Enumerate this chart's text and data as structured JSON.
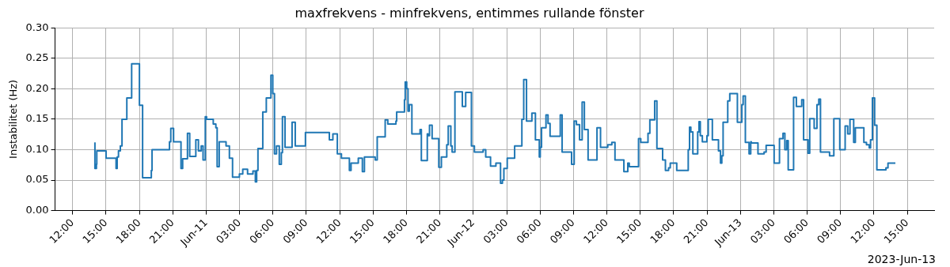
{
  "chart_data": {
    "type": "step",
    "title": "maxfrekvens - minfrekvens, entimmes rullande fönster",
    "ylabel": "Instabilitet (Hz)",
    "annotations": [
      "2023-Jun-13"
    ],
    "xlim": [
      "2023-06-10T10:25",
      "2023-06-13T17:25"
    ],
    "xticks": [
      {
        "value": "2023-06-10T12:00",
        "label": "12:00"
      },
      {
        "value": "2023-06-10T15:00",
        "label": "15:00"
      },
      {
        "value": "2023-06-10T18:00",
        "label": "18:00"
      },
      {
        "value": "2023-06-10T21:00",
        "label": "21:00"
      },
      {
        "value": "2023-06-11T00:00",
        "label": "Jun-11"
      },
      {
        "value": "2023-06-11T03:00",
        "label": "03:00"
      },
      {
        "value": "2023-06-11T06:00",
        "label": "06:00"
      },
      {
        "value": "2023-06-11T09:00",
        "label": "09:00"
      },
      {
        "value": "2023-06-11T12:00",
        "label": "12:00"
      },
      {
        "value": "2023-06-11T15:00",
        "label": "15:00"
      },
      {
        "value": "2023-06-11T18:00",
        "label": "18:00"
      },
      {
        "value": "2023-06-11T21:00",
        "label": "21:00"
      },
      {
        "value": "2023-06-12T00:00",
        "label": "Jun-12"
      },
      {
        "value": "2023-06-12T03:00",
        "label": "03:00"
      },
      {
        "value": "2023-06-12T06:00",
        "label": "06:00"
      },
      {
        "value": "2023-06-12T09:00",
        "label": "09:00"
      },
      {
        "value": "2023-06-12T12:00",
        "label": "12:00"
      },
      {
        "value": "2023-06-12T15:00",
        "label": "15:00"
      },
      {
        "value": "2023-06-12T18:00",
        "label": "18:00"
      },
      {
        "value": "2023-06-12T21:00",
        "label": "21:00"
      },
      {
        "value": "2023-06-13T00:00",
        "label": "Jun-13"
      },
      {
        "value": "2023-06-13T03:00",
        "label": "03:00"
      },
      {
        "value": "2023-06-13T06:00",
        "label": "06:00"
      },
      {
        "value": "2023-06-13T09:00",
        "label": "09:00"
      },
      {
        "value": "2023-06-13T12:00",
        "label": "12:00"
      },
      {
        "value": "2023-06-13T15:00",
        "label": "15:00"
      }
    ],
    "ylim": [
      0,
      0.3
    ],
    "yticks": [
      {
        "value": 0,
        "label": "0.00"
      },
      {
        "value": 0.05,
        "label": "0.05"
      },
      {
        "value": 0.1,
        "label": "0.10"
      },
      {
        "value": 0.15,
        "label": "0.15"
      },
      {
        "value": 0.2,
        "label": "0.20"
      },
      {
        "value": 0.25,
        "label": "0.25"
      },
      {
        "value": 0.3,
        "label": "0.30"
      }
    ],
    "grid": true,
    "x": [
      "2023-06-10T14:00",
      "2023-06-10T14:08",
      "2023-06-10T14:10",
      "2023-06-10T15:00",
      "2023-06-10T15:54",
      "2023-06-10T16:00",
      "2023-06-10T16:07",
      "2023-06-10T16:17",
      "2023-06-10T16:26",
      "2023-06-10T16:52",
      "2023-06-10T17:18",
      "2023-06-10T18:00",
      "2023-06-10T18:17",
      "2023-06-10T19:04",
      "2023-06-10T19:08",
      "2023-06-10T20:42",
      "2023-06-10T20:49",
      "2023-06-10T21:04",
      "2023-06-10T21:44",
      "2023-06-10T21:53",
      "2023-06-10T22:19",
      "2023-06-10T22:31",
      "2023-06-10T23:04",
      "2023-06-10T23:18",
      "2023-06-10T23:33",
      "2023-06-10T23:43",
      "2023-06-10T23:55",
      "2023-06-11T00:02",
      "2023-06-11T00:38",
      "2023-06-11T00:52",
      "2023-06-11T00:59",
      "2023-06-11T01:10",
      "2023-06-11T01:47",
      "2023-06-11T02:05",
      "2023-06-11T02:22",
      "2023-06-11T02:59",
      "2023-06-11T03:17",
      "2023-06-11T03:43",
      "2023-06-11T04:12",
      "2023-06-11T04:25",
      "2023-06-11T04:32",
      "2023-06-11T04:39",
      "2023-06-11T05:05",
      "2023-06-11T05:24",
      "2023-06-11T05:49",
      "2023-06-11T05:59",
      "2023-06-11T06:08",
      "2023-06-11T06:19",
      "2023-06-11T06:34",
      "2023-06-11T06:45",
      "2023-06-11T06:51",
      "2023-06-11T07:05",
      "2023-06-11T07:43",
      "2023-06-11T08:00",
      "2023-06-11T08:55",
      "2023-06-11T11:04",
      "2023-06-11T11:23",
      "2023-06-11T11:47",
      "2023-06-11T12:09",
      "2023-06-11T12:52",
      "2023-06-11T13:01",
      "2023-06-11T13:40",
      "2023-06-11T14:02",
      "2023-06-11T14:13",
      "2023-06-11T15:11",
      "2023-06-11T15:22",
      "2023-06-11T16:05",
      "2023-06-11T16:19",
      "2023-06-11T17:03",
      "2023-06-11T17:07",
      "2023-06-11T17:49",
      "2023-06-11T17:53",
      "2023-06-11T18:01",
      "2023-06-11T18:08",
      "2023-06-11T18:15",
      "2023-06-11T18:29",
      "2023-06-11T19:13",
      "2023-06-11T19:20",
      "2023-06-11T19:52",
      "2023-06-11T19:56",
      "2023-06-11T20:04",
      "2023-06-11T20:18",
      "2023-06-11T20:54",
      "2023-06-11T21:08",
      "2023-06-11T21:37",
      "2023-06-11T21:45",
      "2023-06-11T21:59",
      "2023-06-11T22:06",
      "2023-06-11T22:21",
      "2023-06-11T23:01",
      "2023-06-11T23:19",
      "2023-06-11T23:50",
      "2023-06-12T00:06",
      "2023-06-12T00:53",
      "2023-06-12T01:07",
      "2023-06-12T01:33",
      "2023-06-12T02:02",
      "2023-06-12T02:27",
      "2023-06-12T02:37",
      "2023-06-12T02:45",
      "2023-06-12T03:03",
      "2023-06-12T03:43",
      "2023-06-12T04:22",
      "2023-06-12T04:32",
      "2023-06-12T04:47",
      "2023-06-12T05:16",
      "2023-06-12T05:35",
      "2023-06-12T05:56",
      "2023-06-12T06:01",
      "2023-06-12T06:08",
      "2023-06-12T06:32",
      "2023-06-12T06:43",
      "2023-06-12T06:54",
      "2023-06-12T07:49",
      "2023-06-12T07:59",
      "2023-06-12T08:50",
      "2023-06-12T09:04",
      "2023-06-12T09:16",
      "2023-06-12T09:33",
      "2023-06-12T09:47",
      "2023-06-12T09:59",
      "2023-06-12T10:19",
      "2023-06-12T11:07",
      "2023-06-12T11:26",
      "2023-06-12T12:05",
      "2023-06-12T12:27",
      "2023-06-12T12:44",
      "2023-06-12T13:32",
      "2023-06-12T13:53",
      "2023-06-12T14:01",
      "2023-06-12T14:51",
      "2023-06-12T15:03",
      "2023-06-12T15:42",
      "2023-06-12T15:52",
      "2023-06-12T16:18",
      "2023-06-12T16:30",
      "2023-06-12T17:01",
      "2023-06-12T17:16",
      "2023-06-12T17:33",
      "2023-06-12T17:42",
      "2023-06-12T18:17",
      "2023-06-12T19:19",
      "2023-06-12T19:26",
      "2023-06-12T19:33",
      "2023-06-12T19:44",
      "2023-06-12T20:10",
      "2023-06-12T20:17",
      "2023-06-12T20:24",
      "2023-06-12T20:35",
      "2023-06-12T21:00",
      "2023-06-12T21:07",
      "2023-06-12T21:29",
      "2023-06-12T22:02",
      "2023-06-12T22:13",
      "2023-06-12T22:20",
      "2023-06-12T22:27",
      "2023-06-12T22:52",
      "2023-06-12T23:03",
      "2023-06-12T23:44",
      "2023-06-13T00:08",
      "2023-06-13T00:15",
      "2023-06-13T00:27",
      "2023-06-13T00:47",
      "2023-06-13T00:56",
      "2023-06-13T00:59",
      "2023-06-13T01:35",
      "2023-06-13T02:08",
      "2023-06-13T02:19",
      "2023-06-13T03:02",
      "2023-06-13T03:31",
      "2023-06-13T03:50",
      "2023-06-13T04:00",
      "2023-06-13T04:10",
      "2023-06-13T04:18",
      "2023-06-13T04:47",
      "2023-06-13T05:02",
      "2023-06-13T05:31",
      "2023-06-13T05:41",
      "2023-06-13T06:05",
      "2023-06-13T06:14",
      "2023-06-13T06:38",
      "2023-06-13T06:53",
      "2023-06-13T07:03",
      "2023-06-13T07:12",
      "2023-06-13T08:01",
      "2023-06-13T08:24",
      "2023-06-13T08:56",
      "2023-06-13T09:25",
      "2023-06-13T09:39",
      "2023-06-13T09:51",
      "2023-06-13T10:11",
      "2023-06-13T10:20",
      "2023-06-13T11:06",
      "2023-06-13T11:20",
      "2023-06-13T11:35",
      "2023-06-13T11:42",
      "2023-06-13T11:52",
      "2023-06-13T12:04",
      "2023-06-13T12:16",
      "2023-06-13T13:05",
      "2023-06-13T13:16",
      "2023-06-13T13:56"
    ],
    "series": [
      {
        "color": "#1f77b4",
        "values": [
          0.112,
          0.069,
          0.076,
          0.098,
          0.086,
          0.069,
          0.088,
          0.098,
          0.106,
          0.15,
          0.185,
          0.241,
          0.173,
          0.054,
          0.066,
          0.1,
          0.113,
          0.135,
          0.113,
          0.069,
          0.085,
          0.127,
          0.089,
          0.116,
          0.098,
          0.106,
          0.083,
          0.154,
          0.15,
          0.142,
          0.136,
          0.072,
          0.113,
          0.106,
          0.086,
          0.055,
          0.06,
          0.068,
          0.06,
          0.065,
          0.047,
          0.066,
          0.102,
          0.162,
          0.185,
          0.222,
          0.192,
          0.093,
          0.106,
          0.076,
          0.095,
          0.154,
          0.104,
          0.145,
          0.106,
          0.128,
          0.116,
          0.126,
          0.093,
          0.086,
          0.066,
          0.078,
          0.086,
          0.064,
          0.088,
          0.083,
          0.121,
          0.149,
          0.142,
          0.147,
          0.162,
          0.182,
          0.211,
          0.2,
          0.163,
          0.174,
          0.126,
          0.133,
          0.082,
          0.126,
          0.123,
          0.14,
          0.118,
          0.071,
          0.088,
          0.108,
          0.139,
          0.106,
          0.096,
          0.195,
          0.171,
          0.194,
          0.106,
          0.096,
          0.1,
          0.088,
          0.073,
          0.078,
          0.045,
          0.05,
          0.069,
          0.086,
          0.106,
          0.15,
          0.215,
          0.147,
          0.16,
          0.116,
          0.088,
          0.104,
          0.136,
          0.157,
          0.143,
          0.122,
          0.157,
          0.096,
          0.076,
          0.147,
          0.141,
          0.116,
          0.178,
          0.133,
          0.083,
          0.136,
          0.104,
          0.108,
          0.112,
          0.083,
          0.064,
          0.078,
          0.072,
          0.118,
          0.112,
          0.127,
          0.149,
          0.18,
          0.102,
          0.083,
          0.066,
          0.07,
          0.078,
          0.066,
          0.1,
          0.137,
          0.129,
          0.093,
          0.129,
          0.146,
          0.123,
          0.113,
          0.123,
          0.15,
          0.116,
          0.098,
          0.078,
          0.09,
          0.145,
          0.18,
          0.192,
          0.145,
          0.174,
          0.188,
          0.112,
          0.093,
          0.113,
          0.111,
          0.093,
          0.096,
          0.107,
          0.078,
          0.118,
          0.127,
          0.1,
          0.115,
          0.067,
          0.186,
          0.171,
          0.182,
          0.116,
          0.094,
          0.151,
          0.135,
          0.174,
          0.183,
          0.096,
          0.09,
          0.151,
          0.1,
          0.139,
          0.126,
          0.15,
          0.112,
          0.136,
          0.112,
          0.108,
          0.103,
          0.116,
          0.185,
          0.14,
          0.067,
          0.07,
          0.078
        ]
      }
    ]
  }
}
